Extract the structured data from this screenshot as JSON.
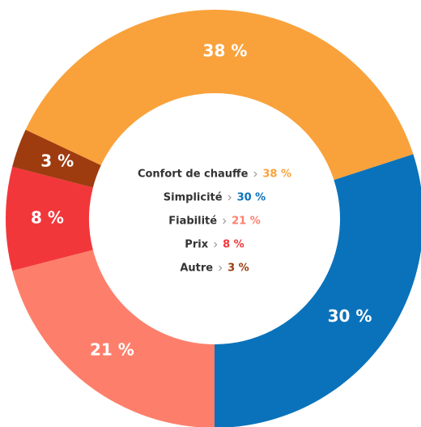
{
  "chart_data": {
    "type": "donut",
    "categories": [
      "Confort de chauffe",
      "Simplicité",
      "Fiabilité",
      "Prix",
      "Autre"
    ],
    "values": [
      38,
      30,
      21,
      8,
      3
    ],
    "value_labels": [
      "38 %",
      "30 %",
      "21 %",
      "8 %",
      "3 %"
    ],
    "colors": [
      "#f9a23b",
      "#0a72bb",
      "#fd7f6b",
      "#f2373b",
      "#9e3c0f"
    ]
  }
}
